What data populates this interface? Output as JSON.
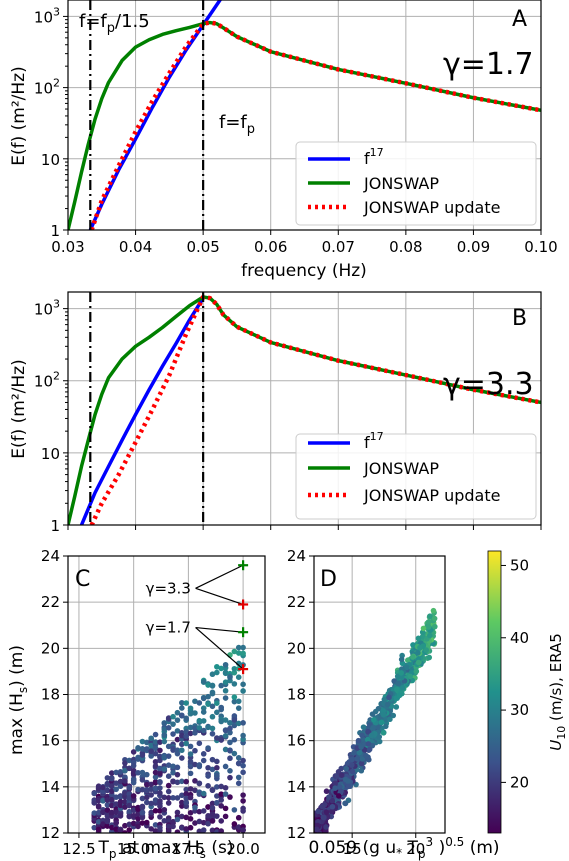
{
  "chart_data": [
    {
      "type": "line",
      "panel": "A",
      "gamma_label": "γ=1.7",
      "xlabel": "frequency (Hz)",
      "ylabel": "E(f) (m²/Hz)",
      "xlim": [
        0.03,
        0.1
      ],
      "ylim": [
        1,
        1700
      ],
      "y_scale": "log",
      "grid": true,
      "legend_position": "lower-right",
      "x_ticks": [
        "0.03",
        "0.04",
        "0.05",
        "0.06",
        "0.07",
        "0.08",
        "0.09",
        "0.10"
      ],
      "y_ticks": [
        "1",
        "10",
        "10²",
        "10³"
      ],
      "vlines": [
        {
          "x": 0.0333,
          "label": "f=f_p/1.5"
        },
        {
          "x": 0.05,
          "label": "f=f_p"
        }
      ],
      "series": [
        {
          "name": "f^17",
          "color": "#0000ff",
          "x": [
            0.0333,
            0.035,
            0.0375,
            0.04,
            0.0425,
            0.045,
            0.0475,
            0.05,
            0.0525,
            0.054
          ],
          "y": [
            1.0,
            2.3,
            7,
            19,
            53,
            140,
            340,
            760,
            1700,
            2800
          ]
        },
        {
          "name": "JONSWAP",
          "color": "#008000",
          "x": [
            0.03,
            0.031,
            0.032,
            0.033,
            0.034,
            0.035,
            0.036,
            0.038,
            0.04,
            0.042,
            0.044,
            0.046,
            0.048,
            0.05,
            0.051,
            0.052,
            0.053,
            0.055,
            0.06,
            0.07,
            0.08,
            0.09,
            0.1
          ],
          "y": [
            1,
            2.5,
            6.5,
            16,
            36,
            70,
            118,
            240,
            370,
            470,
            560,
            630,
            700,
            790,
            820,
            790,
            690,
            520,
            320,
            180,
            115,
            72,
            48
          ]
        },
        {
          "name": "JONSWAP update",
          "color": "#ff0000",
          "x": [
            0.0335,
            0.035,
            0.0375,
            0.04,
            0.0425,
            0.045,
            0.0475,
            0.05,
            0.051,
            0.052,
            0.053,
            0.055,
            0.06,
            0.07,
            0.08,
            0.09,
            0.1
          ],
          "y": [
            1,
            2.6,
            8,
            24,
            65,
            160,
            380,
            790,
            820,
            790,
            690,
            520,
            320,
            180,
            115,
            72,
            48
          ]
        }
      ]
    },
    {
      "type": "line",
      "panel": "B",
      "gamma_label": "γ=3.3",
      "xlabel": "",
      "ylabel": "E(f) (m²/Hz)",
      "xlim": [
        0.03,
        0.1
      ],
      "ylim": [
        1,
        1700
      ],
      "y_scale": "log",
      "grid": true,
      "legend_position": "lower-right",
      "y_ticks": [
        "1",
        "10",
        "10²",
        "10³"
      ],
      "vlines": [
        {
          "x": 0.0333
        },
        {
          "x": 0.05
        }
      ],
      "series": [
        {
          "name": "f^17",
          "color": "#0000ff",
          "x": [
            0.032,
            0.034,
            0.036,
            0.038,
            0.04,
            0.042,
            0.044,
            0.046,
            0.048,
            0.05
          ],
          "y": [
            1,
            2.8,
            6.5,
            15,
            34,
            75,
            160,
            330,
            700,
            1400
          ]
        },
        {
          "name": "JONSWAP",
          "color": "#008000",
          "x": [
            0.03,
            0.031,
            0.032,
            0.033,
            0.034,
            0.035,
            0.036,
            0.038,
            0.04,
            0.042,
            0.044,
            0.046,
            0.048,
            0.05,
            0.051,
            0.052,
            0.053,
            0.055,
            0.06,
            0.07,
            0.08,
            0.09,
            0.1
          ],
          "y": [
            1,
            2.5,
            6.5,
            15,
            34,
            65,
            110,
            200,
            300,
            400,
            550,
            780,
            1100,
            1450,
            1400,
            1150,
            820,
            560,
            340,
            190,
            120,
            75,
            50
          ]
        },
        {
          "name": "JONSWAP update",
          "color": "#ff0000",
          "x": [
            0.0335,
            0.035,
            0.0375,
            0.04,
            0.0425,
            0.045,
            0.0475,
            0.05,
            0.051,
            0.052,
            0.053,
            0.055,
            0.06,
            0.07,
            0.08,
            0.09,
            0.1
          ],
          "y": [
            1,
            2,
            5,
            14,
            40,
            120,
            450,
            1450,
            1400,
            1150,
            820,
            560,
            340,
            190,
            120,
            75,
            50
          ]
        }
      ]
    },
    {
      "type": "scatter",
      "panel": "C",
      "xlabel": "T_p at max H_s (s)",
      "ylabel": "max (H_s) (m)",
      "xlim": [
        12,
        21
      ],
      "ylim": [
        12,
        24
      ],
      "x_ticks": [
        "12.5",
        "15.0",
        "17.5",
        "20.0"
      ],
      "y_ticks": [
        "12",
        "14",
        "16",
        "18",
        "20",
        "22",
        "24"
      ],
      "annotations": [
        {
          "text": "γ=3.3",
          "x": 20,
          "y_green": 23.6,
          "y_red": 21.9
        },
        {
          "text": "γ=1.7",
          "x": 20,
          "y_green": 20.7,
          "y_red": 19.1
        }
      ]
    },
    {
      "type": "scatter",
      "panel": "D",
      "xlabel": "0.059 (g u* T_p^3)^0.5 (m)",
      "ylabel": "",
      "xlim": [
        12,
        22.3
      ],
      "ylim": [
        12,
        24
      ],
      "x_ticks": [
        "15",
        "20"
      ],
      "y_ticks": [
        "12",
        "14",
        "16",
        "18",
        "20",
        "22",
        "24"
      ],
      "colorbar": {
        "label": "U_10 (m/s), ERA5",
        "range": [
          13,
          52
        ],
        "ticks": [
          "20",
          "30",
          "40",
          "50"
        ]
      }
    }
  ]
}
